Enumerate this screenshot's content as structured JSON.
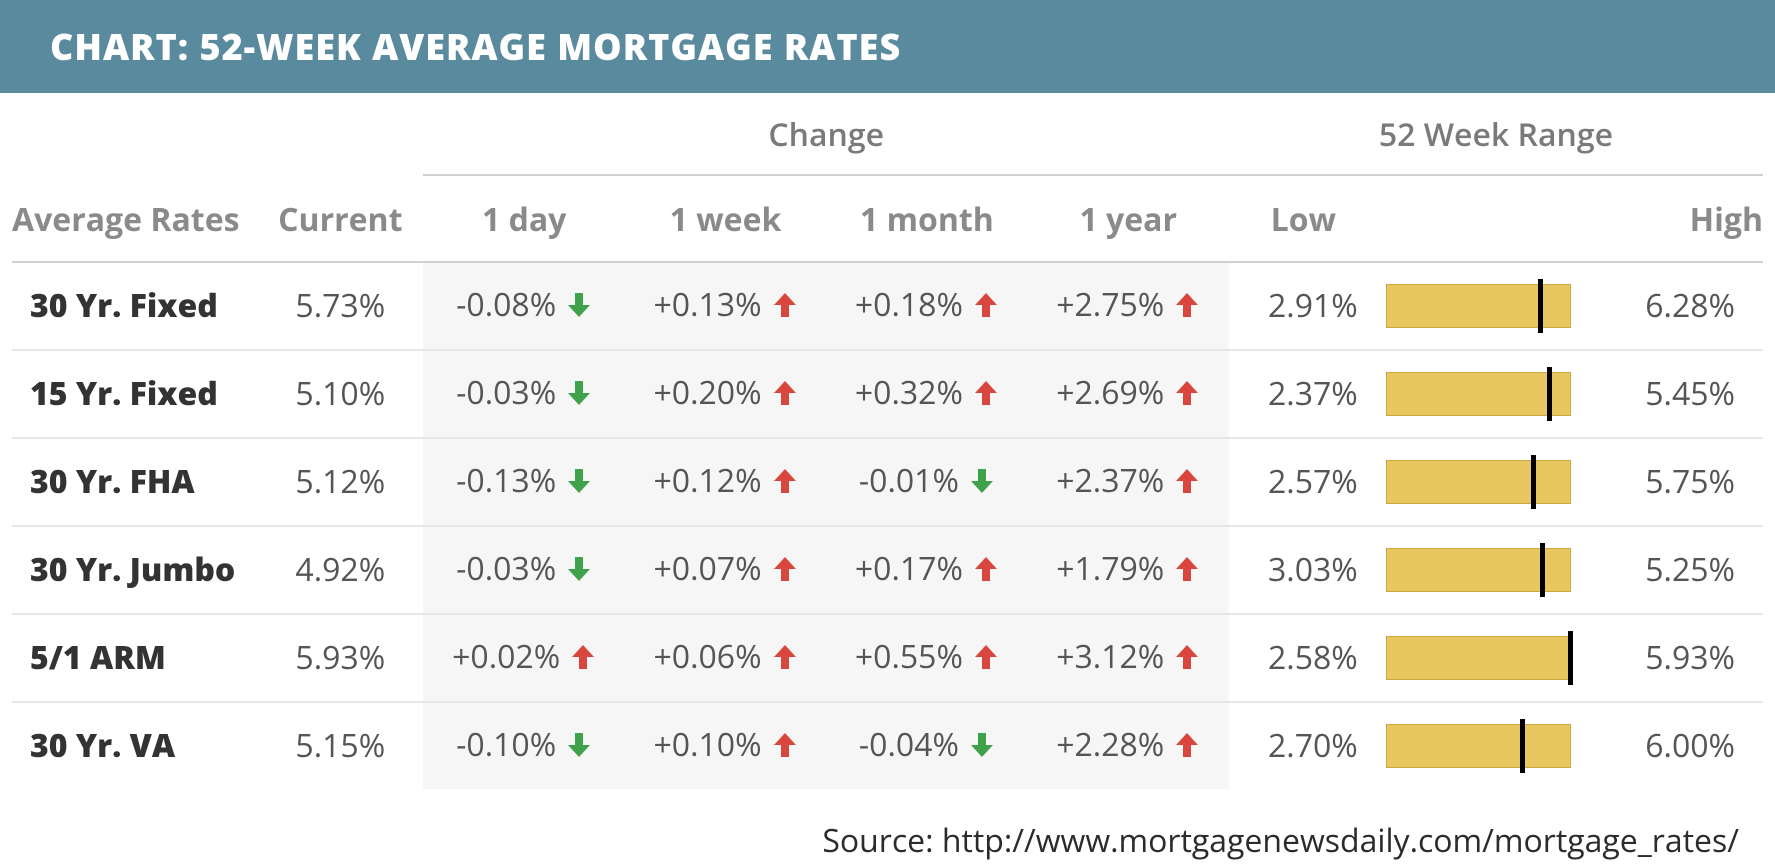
{
  "header": {
    "title": "CHART: 52-WEEK AVERAGE MORTGAGE RATES"
  },
  "colors": {
    "header_bg": "#5a8a9e",
    "up": "#d9463d",
    "down": "#3fa24b",
    "range_fill": "#e9c760",
    "range_border": "#c9a840"
  },
  "columns": {
    "name": "Average Rates",
    "current": "Current",
    "change_group": "Change",
    "range_group": "52 Week Range",
    "d1": "1 day",
    "w1": "1 week",
    "m1": "1 month",
    "y1": "1 year",
    "low": "Low",
    "high": "High"
  },
  "rows": [
    {
      "name": "30 Yr. Fixed",
      "current": "5.73%",
      "d1": {
        "text": "-0.08%",
        "dir": "down"
      },
      "w1": {
        "text": "+0.13%",
        "dir": "up"
      },
      "m1": {
        "text": "+0.18%",
        "dir": "up"
      },
      "y1": {
        "text": "+2.75%",
        "dir": "up"
      },
      "low": "2.91%",
      "high": "6.28%",
      "low_v": 2.91,
      "high_v": 6.28,
      "cur_v": 5.73
    },
    {
      "name": "15 Yr. Fixed",
      "current": "5.10%",
      "d1": {
        "text": "-0.03%",
        "dir": "down"
      },
      "w1": {
        "text": "+0.20%",
        "dir": "up"
      },
      "m1": {
        "text": "+0.32%",
        "dir": "up"
      },
      "y1": {
        "text": "+2.69%",
        "dir": "up"
      },
      "low": "2.37%",
      "high": "5.45%",
      "low_v": 2.37,
      "high_v": 5.45,
      "cur_v": 5.1
    },
    {
      "name": "30 Yr. FHA",
      "current": "5.12%",
      "d1": {
        "text": "-0.13%",
        "dir": "down"
      },
      "w1": {
        "text": "+0.12%",
        "dir": "up"
      },
      "m1": {
        "text": "-0.01%",
        "dir": "down"
      },
      "y1": {
        "text": "+2.37%",
        "dir": "up"
      },
      "low": "2.57%",
      "high": "5.75%",
      "low_v": 2.57,
      "high_v": 5.75,
      "cur_v": 5.12
    },
    {
      "name": "30 Yr. Jumbo",
      "current": "4.92%",
      "d1": {
        "text": "-0.03%",
        "dir": "down"
      },
      "w1": {
        "text": "+0.07%",
        "dir": "up"
      },
      "m1": {
        "text": "+0.17%",
        "dir": "up"
      },
      "y1": {
        "text": "+1.79%",
        "dir": "up"
      },
      "low": "3.03%",
      "high": "5.25%",
      "low_v": 3.03,
      "high_v": 5.25,
      "cur_v": 4.92
    },
    {
      "name": "5/1 ARM",
      "current": "5.93%",
      "d1": {
        "text": "+0.02%",
        "dir": "up"
      },
      "w1": {
        "text": "+0.06%",
        "dir": "up"
      },
      "m1": {
        "text": "+0.55%",
        "dir": "up"
      },
      "y1": {
        "text": "+3.12%",
        "dir": "up"
      },
      "low": "2.58%",
      "high": "5.93%",
      "low_v": 2.58,
      "high_v": 5.93,
      "cur_v": 5.93
    },
    {
      "name": "30 Yr. VA",
      "current": "5.15%",
      "d1": {
        "text": "-0.10%",
        "dir": "down"
      },
      "w1": {
        "text": "+0.10%",
        "dir": "up"
      },
      "m1": {
        "text": "-0.04%",
        "dir": "down"
      },
      "y1": {
        "text": "+2.28%",
        "dir": "up"
      },
      "low": "2.70%",
      "high": "6.00%",
      "low_v": 2.7,
      "high_v": 6.0,
      "cur_v": 5.15
    }
  ],
  "source": "Source: http://www.mortgagenewsdaily.com/mortgage_rates/"
}
